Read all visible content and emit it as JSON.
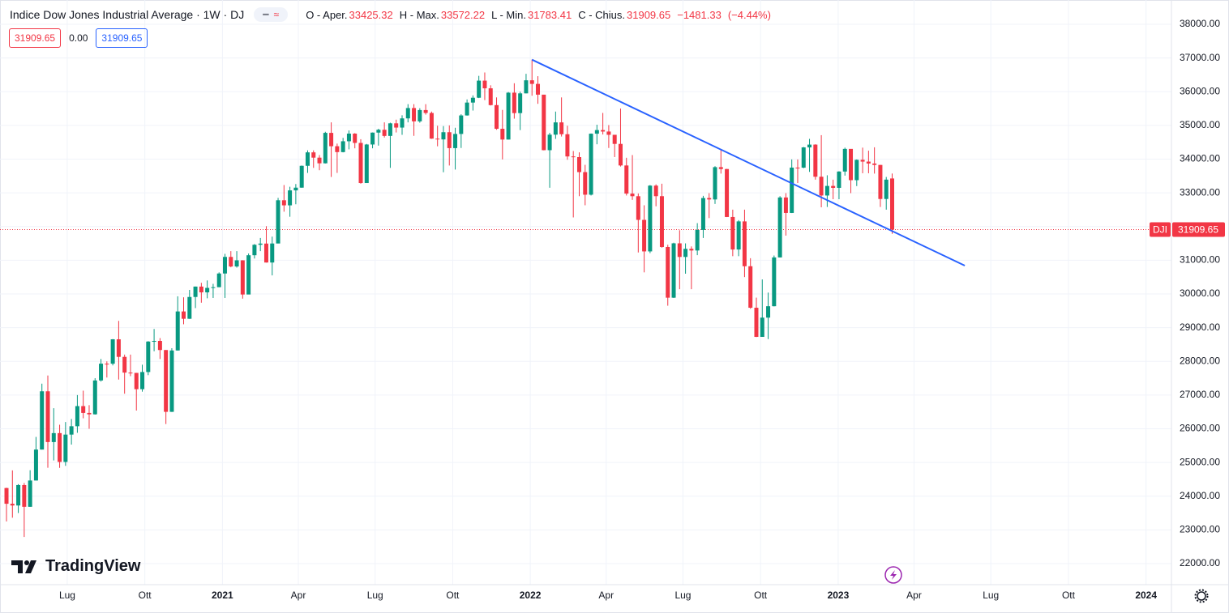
{
  "chart_data": {
    "type": "candlestick",
    "title": "Indice Dow Jones Industrial Average · 1W · DJ",
    "categories": [
      null,
      null,
      null,
      null,
      null,
      null,
      null,
      null,
      null,
      null,
      null,
      null,
      null,
      null,
      null,
      null,
      null,
      null,
      null,
      null,
      null,
      null,
      null,
      null,
      null,
      null,
      null,
      null,
      null,
      null,
      null,
      null,
      null,
      null,
      null,
      null,
      null,
      null,
      null,
      null,
      null,
      null,
      null,
      null,
      null,
      null,
      null,
      null,
      null,
      null,
      null,
      null,
      null,
      null,
      null,
      null,
      null,
      null,
      null,
      null,
      null,
      null,
      null,
      null,
      null,
      null,
      null,
      null,
      null,
      null,
      null,
      null,
      null,
      null,
      null,
      null,
      null,
      null,
      null,
      null,
      null,
      null,
      null,
      null,
      null,
      null,
      null,
      null,
      null,
      null,
      null,
      null,
      null,
      null,
      null,
      null,
      null,
      null,
      null,
      null,
      null,
      null,
      null,
      null,
      null,
      null,
      null,
      null,
      null,
      null,
      null,
      null,
      null,
      null,
      null,
      null,
      null,
      null,
      null,
      null,
      null,
      null,
      null,
      null,
      null,
      null,
      null,
      null,
      null,
      null,
      null,
      null,
      null,
      null,
      null,
      null,
      null,
      null,
      null,
      null,
      null,
      null,
      null,
      null,
      null,
      null,
      null,
      null,
      null,
      null,
      null
    ],
    "open": [
      24242,
      23775,
      23724,
      24331,
      23685,
      24465,
      25383,
      27111,
      25606,
      25871,
      25016,
      25827,
      26075,
      26672,
      26470,
      26428,
      27433,
      27931,
      27930,
      28654,
      28133,
      27666,
      27657,
      27174,
      27683,
      28587,
      28606,
      28336,
      26502,
      28323,
      29480,
      29263,
      29910,
      30218,
      30046,
      30179,
      30200,
      30606,
      31098,
      30814,
      30997,
      29983,
      31148,
      31458,
      31494,
      30932,
      31496,
      32779,
      32628,
      33072,
      33153,
      33801,
      34200,
      34043,
      33875,
      34778,
      34382,
      34208,
      34529,
      34756,
      34480,
      33290,
      34433,
      34786,
      34870,
      34688,
      35061,
      34935,
      35208,
      35515,
      35120,
      35455,
      35369,
      34607,
      34584,
      34798,
      34326,
      34746,
      35295,
      35677,
      35820,
      36328,
      36100,
      35602,
      34899,
      34580,
      35971,
      35365,
      35950,
      36338,
      36231,
      35912,
      34265,
      34725,
      35089,
      34738,
      34079,
      34059,
      33614,
      32944,
      34754,
      34861,
      34818,
      34721,
      34451,
      33811,
      32977,
      32899,
      32197,
      31262,
      33213,
      32900,
      31393,
      29888,
      31501,
      31097,
      31338,
      31289,
      31899,
      32845,
      32803,
      33761,
      33706,
      32283,
      31318,
      32152,
      30822,
      29590,
      28726,
      29297,
      29635,
      31083,
      32862,
      32403,
      33748,
      33746,
      34347,
      34430,
      33477,
      32920,
      33204,
      33147,
      33631,
      34303,
      33375,
      33978,
      33926,
      33869,
      33827,
      32817,
      33425.32
    ],
    "high": [
      24250,
      24765,
      24358,
      24390,
      24770,
      25758,
      27338,
      27580,
      26610,
      26120,
      26200,
      26290,
      27000,
      27130,
      26700,
      27500,
      28070,
      28000,
      28660,
      29200,
      28200,
      28200,
      27660,
      27900,
      28600,
      28960,
      28690,
      28336,
      28390,
      29930,
      29900,
      30120,
      30220,
      30330,
      30400,
      30300,
      30640,
      31190,
      31270,
      31270,
      31000,
      31200,
      31480,
      31660,
      32010,
      31700,
      32850,
      33230,
      33180,
      33260,
      33810,
      34260,
      34260,
      34120,
      34810,
      35090,
      34460,
      34630,
      34850,
      34770,
      34590,
      34450,
      34790,
      34900,
      35090,
      35080,
      35170,
      35300,
      35630,
      35630,
      35510,
      35630,
      35410,
      34990,
      34980,
      35000,
      34930,
      35330,
      35770,
      35890,
      36470,
      36570,
      36190,
      35830,
      35460,
      35990,
      36250,
      36000,
      36530,
      36952,
      36460,
      35830,
      34780,
      35410,
      35830,
      34990,
      34240,
      34200,
      33830,
      34760,
      35020,
      35370,
      35010,
      34720,
      35500,
      34040,
      34120,
      32980,
      32630,
      33230,
      33250,
      33270,
      31460,
      31520,
      31890,
      31500,
      31410,
      32100,
      32910,
      32990,
      33790,
      34280,
      33710,
      32500,
      32190,
      32500,
      31060,
      29890,
      30430,
      30040,
      31140,
      32900,
      32990,
      33990,
      33990,
      34360,
      34600,
      34440,
      34710,
      33520,
      33390,
      33640,
      34340,
      34250,
      33990,
      34340,
      34250,
      34350,
      33830,
      33470,
      33572.22
    ],
    "low": [
      23250,
      23361,
      23500,
      22790,
      23685,
      24465,
      25383,
      24843,
      25060,
      24840,
      24900,
      25530,
      25880,
      26310,
      26000,
      26420,
      27400,
      27520,
      27880,
      27460,
      27040,
      27560,
      26540,
      27100,
      27590,
      28300,
      28070,
      26140,
      26500,
      28320,
      29100,
      29260,
      29580,
      29740,
      29870,
      29880,
      30200,
      29880,
      30790,
      30780,
      29860,
      29990,
      31050,
      31270,
      30930,
      30550,
      31500,
      32440,
      32290,
      32660,
      33150,
      33590,
      33740,
      33670,
      33870,
      33470,
      33590,
      34200,
      34290,
      34320,
      33270,
      33320,
      34320,
      34400,
      34640,
      33740,
      34790,
      34720,
      35090,
      34690,
      35080,
      35320,
      34600,
      34380,
      33610,
      33810,
      33690,
      34330,
      35290,
      35440,
      35810,
      35750,
      35590,
      34870,
      33990,
      34580,
      35200,
      34860,
      35950,
      35880,
      35640,
      34260,
      33150,
      34600,
      34670,
      33980,
      32270,
      32900,
      32630,
      32920,
      34440,
      34730,
      34330,
      34060,
      33780,
      32920,
      32790,
      31230,
      30640,
      31210,
      32600,
      31370,
      29650,
      29880,
      30140,
      30600,
      30140,
      31150,
      31660,
      32250,
      32670,
      33570,
      32280,
      31120,
      31120,
      30500,
      29560,
      28720,
      28730,
      28660,
      29630,
      31080,
      31730,
      32400,
      33290,
      33730,
      33620,
      33390,
      32570,
      32580,
      32810,
      32810,
      33510,
      32990,
      33200,
      33580,
      33580,
      33570,
      32580,
      32500,
      31783.41
    ],
    "close": [
      23775,
      23724,
      24331,
      23685,
      24465,
      25383,
      27111,
      25606,
      25871,
      25016,
      25827,
      26075,
      26672,
      26470,
      26428,
      27433,
      27931,
      27930,
      28654,
      28133,
      27666,
      27657,
      27174,
      27683,
      28587,
      28606,
      28336,
      26502,
      28323,
      29480,
      29263,
      29910,
      30218,
      30046,
      30179,
      30200,
      30606,
      31098,
      30814,
      30997,
      29983,
      31148,
      31458,
      31494,
      30932,
      31496,
      32779,
      32628,
      33072,
      33153,
      33801,
      34200,
      34043,
      33875,
      34778,
      34382,
      34208,
      34529,
      34756,
      34480,
      33290,
      34433,
      34786,
      34870,
      34688,
      35061,
      34935,
      35208,
      35515,
      35120,
      35455,
      35369,
      34607,
      34584,
      34798,
      34326,
      34746,
      35295,
      35677,
      35820,
      36328,
      36100,
      35602,
      34899,
      34580,
      35971,
      35365,
      35950,
      36338,
      36231,
      35912,
      34265,
      34725,
      35089,
      34738,
      34079,
      34059,
      33614,
      32944,
      34754,
      34861,
      34818,
      34721,
      34451,
      33811,
      32977,
      32899,
      32197,
      31262,
      33213,
      32900,
      31393,
      29888,
      31501,
      31097,
      31338,
      31289,
      31899,
      32845,
      32803,
      33761,
      33706,
      32283,
      31318,
      32152,
      30822,
      29590,
      28726,
      29297,
      29635,
      31083,
      32862,
      32403,
      33748,
      33746,
      34347,
      34430,
      33477,
      32920,
      33204,
      33147,
      33631,
      34303,
      33375,
      33978,
      33926,
      33869,
      33827,
      32817,
      33390.98,
      31909.65
    ],
    "up_color": "#089981",
    "down_color": "#f23645",
    "xlim": [
      -1.1,
      197.3
    ],
    "xticks": [
      {
        "value": 10.29,
        "label": "Lug"
      },
      {
        "value": 23.43,
        "label": "Ott"
      },
      {
        "value": 36.57,
        "label": "2021"
      },
      {
        "value": 49.43,
        "label": "Apr"
      },
      {
        "value": 62.43,
        "label": "Lug"
      },
      {
        "value": 75.57,
        "label": "Ott"
      },
      {
        "value": 88.71,
        "label": "2022"
      },
      {
        "value": 101.57,
        "label": "Apr"
      },
      {
        "value": 114.57,
        "label": "Lug"
      },
      {
        "value": 127.71,
        "label": "Ott"
      },
      {
        "value": 140.86,
        "label": "2023"
      },
      {
        "value": 153.71,
        "label": "Apr"
      },
      {
        "value": 166.71,
        "label": "Lug"
      },
      {
        "value": 179.86,
        "label": "Ott"
      },
      {
        "value": 193.0,
        "label": "2024"
      }
    ],
    "ylim": [
      21375,
      38720
    ],
    "yticks": [
      {
        "value": 22000,
        "label": "22000.00"
      },
      {
        "value": 23000,
        "label": "23000.00"
      },
      {
        "value": 24000,
        "label": "24000.00"
      },
      {
        "value": 25000,
        "label": "25000.00"
      },
      {
        "value": 26000,
        "label": "26000.00"
      },
      {
        "value": 27000,
        "label": "27000.00"
      },
      {
        "value": 28000,
        "label": "28000.00"
      },
      {
        "value": 29000,
        "label": "29000.00"
      },
      {
        "value": 30000,
        "label": "30000.00"
      },
      {
        "value": 31000,
        "label": "31000.00"
      },
      {
        "value": 32000,
        "label": "32000.00"
      },
      {
        "value": 33000,
        "label": "33000.00"
      },
      {
        "value": 34000,
        "label": "34000.00"
      },
      {
        "value": 35000,
        "label": "35000.00"
      },
      {
        "value": 36000,
        "label": "36000.00"
      },
      {
        "value": 37000,
        "label": "37000.00"
      },
      {
        "value": 38000,
        "label": "38000.00"
      }
    ],
    "grid": true,
    "last_price_label": "DJI",
    "trendline": {
      "x": [
        89,
        162.3
      ],
      "y": [
        36950,
        30840
      ],
      "color": "#2962ff"
    },
    "legend": {
      "open_label": "O - Aper.",
      "high_label": "H - Max.",
      "low_label": "L - Min.",
      "close_label": "C - Chius.",
      "change": {
        "value": -1481.33,
        "label": "−1481.33"
      },
      "change_pct": {
        "value": -4.44,
        "label": "(−4.44%)"
      },
      "spread": {
        "value": 0,
        "label": "0.00"
      }
    }
  },
  "branding": "TradingView"
}
